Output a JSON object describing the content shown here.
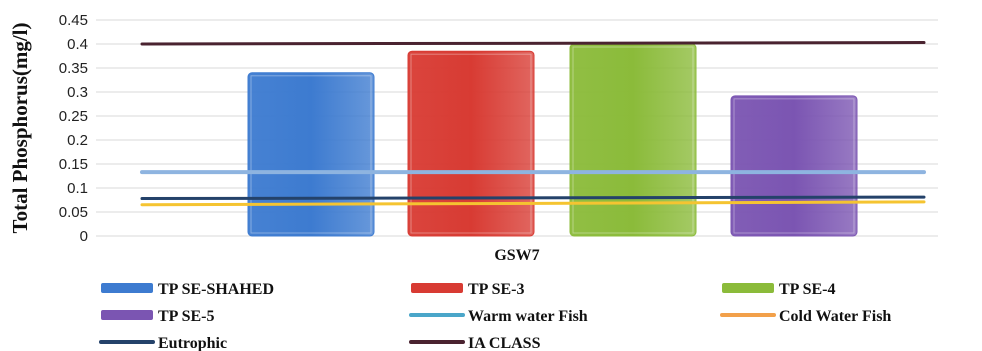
{
  "chart_data": {
    "type": "bar",
    "categories": [
      "GSW7"
    ],
    "ylabel": "Total Phosphorus(mg/l)",
    "ylim": [
      0,
      0.45
    ],
    "yticks": [
      "0",
      "0.05",
      "0.1",
      "0.15",
      "0.2",
      "0.25",
      "0.3",
      "0.35",
      "0.4",
      "0.45"
    ],
    "grid": true,
    "legend_position": "bottom",
    "series": [
      {
        "name": "TP SE-SHAHED",
        "values": [
          0.34
        ],
        "color": "#3d7bd0"
      },
      {
        "name": "TP SE-3",
        "values": [
          0.385
        ],
        "color": "#d83b33"
      },
      {
        "name": "TP SE-4",
        "values": [
          0.4
        ],
        "color": "#8bbb3a"
      },
      {
        "name": "TP SE-5",
        "values": [
          0.292
        ],
        "color": "#7b55b2"
      }
    ],
    "reference_lines": [
      {
        "name": "Warm water Fish",
        "values": [
          0.133,
          0.133
        ],
        "color": "#8eb4e0"
      },
      {
        "name": "Cold Water Fish",
        "values": [
          0.065,
          0.071
        ],
        "color": "#f5c431"
      },
      {
        "name": "Eutrophic",
        "values": [
          0.078,
          0.081
        ],
        "color": "#24426a"
      },
      {
        "name": "IA CLASS",
        "values": [
          0.4,
          0.403
        ],
        "color": "#4a2330"
      }
    ],
    "legend": [
      {
        "label": "TP SE-SHAHED",
        "kind": "bar",
        "color": "#3d7bd0"
      },
      {
        "label": "TP SE-3",
        "kind": "bar",
        "color": "#d83b33"
      },
      {
        "label": "TP SE-4",
        "kind": "bar",
        "color": "#8bbb3a"
      },
      {
        "label": "TP SE-5",
        "kind": "bar",
        "color": "#7b55b2"
      },
      {
        "label": "Warm water Fish",
        "kind": "line",
        "color": "#4aa6c9"
      },
      {
        "label": "Cold Water Fish",
        "kind": "line",
        "color": "#f2a04a"
      },
      {
        "label": "Eutrophic",
        "kind": "line",
        "color": "#24426a"
      },
      {
        "label": "IA CLASS",
        "kind": "line",
        "color": "#4a2330"
      }
    ]
  }
}
